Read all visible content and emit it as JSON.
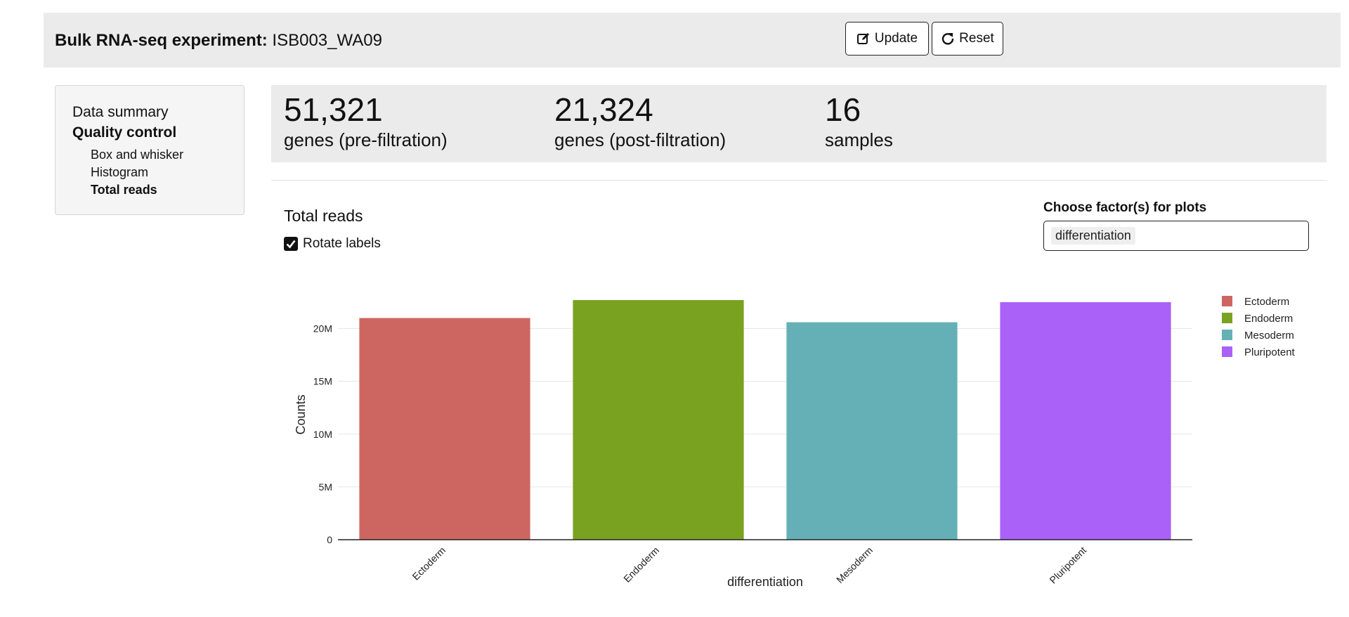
{
  "header": {
    "title_bold": "Bulk RNA-seq experiment:",
    "experiment_id": "ISB003_WA09",
    "update_label": "Update",
    "reset_label": "Reset"
  },
  "sidebar": {
    "items": [
      {
        "label": "Data summary"
      },
      {
        "label": "Quality control"
      },
      {
        "label": "Box and whisker"
      },
      {
        "label": "Histogram"
      },
      {
        "label": "Total reads"
      }
    ]
  },
  "stats": [
    {
      "value": "51,321",
      "label": "genes (pre-filtration)"
    },
    {
      "value": "21,324",
      "label": "genes (post-filtration)"
    },
    {
      "value": "16",
      "label": "samples"
    }
  ],
  "section": {
    "title": "Total reads",
    "rotate_label": "Rotate labels",
    "rotate_checked": true
  },
  "factor": {
    "label": "Choose factor(s) for plots",
    "selected": "differentiation"
  },
  "chart_data": {
    "type": "bar",
    "categories": [
      "Ectoderm",
      "Endoderm",
      "Mesoderm",
      "Pluripotent"
    ],
    "values": [
      21000000,
      22700000,
      20600000,
      22500000
    ],
    "colors": [
      "#cd6661",
      "#7aa221",
      "#65b0b6",
      "#aa61f8"
    ],
    "xlabel": "differentiation",
    "ylabel": "Counts",
    "ylim": [
      0,
      22700000
    ],
    "yticks": [
      0,
      5000000,
      10000000,
      15000000,
      20000000
    ],
    "ytick_labels": [
      "0",
      "5M",
      "10M",
      "15M",
      "20M"
    ],
    "legend": [
      "Ectoderm",
      "Endoderm",
      "Mesoderm",
      "Pluripotent"
    ],
    "legend_position": "right",
    "rotate_x_labels": true
  }
}
